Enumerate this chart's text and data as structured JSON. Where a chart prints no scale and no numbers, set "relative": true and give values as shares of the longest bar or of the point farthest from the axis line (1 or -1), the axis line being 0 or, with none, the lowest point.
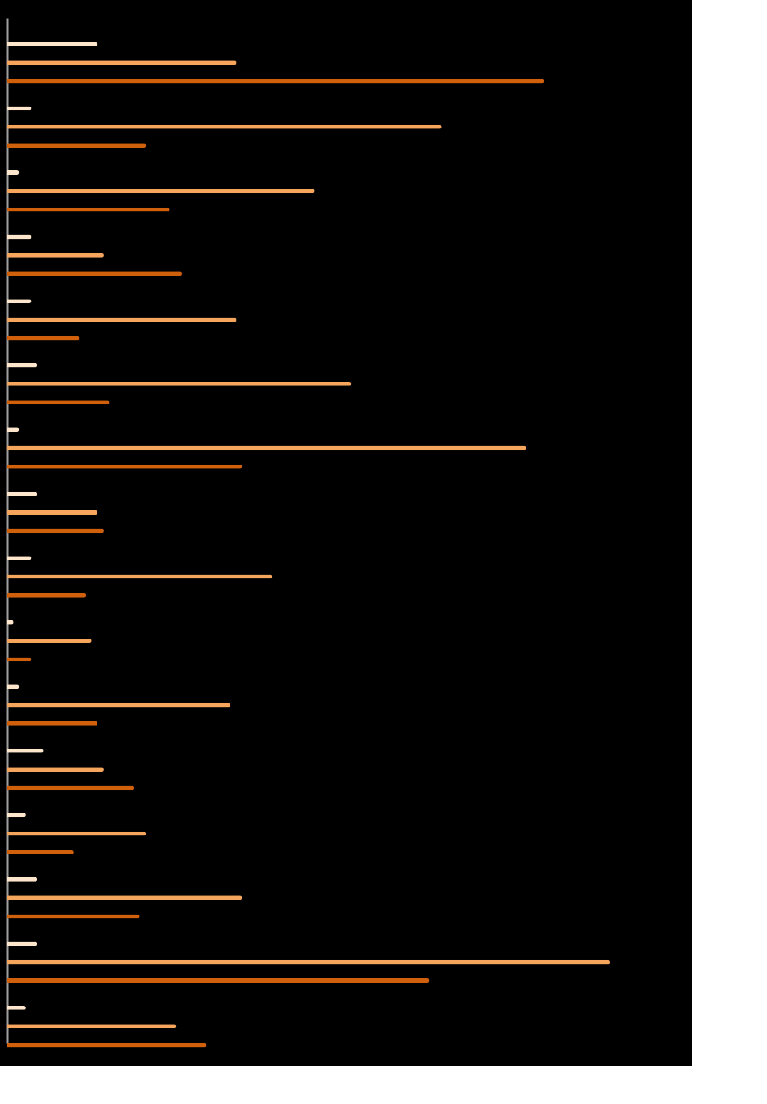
{
  "chart_data": {
    "type": "bar",
    "orientation": "horizontal",
    "relative": true,
    "grid": false,
    "legend": false,
    "categories": [
      null,
      null,
      null,
      null,
      null,
      null,
      null,
      null,
      null,
      null,
      null,
      null,
      null,
      null,
      null,
      null
    ],
    "series": [
      {
        "color": "#fde6cc",
        "values": [
          0.15,
          0.04,
          0.02,
          0.04,
          0.04,
          0.05,
          0.02,
          0.05,
          0.04,
          0.01,
          0.02,
          0.06,
          0.03,
          0.05,
          0.05,
          0.03
        ]
      },
      {
        "color": "#f6a55c",
        "values": [
          0.38,
          0.72,
          0.51,
          0.16,
          0.38,
          0.57,
          0.86,
          0.15,
          0.44,
          0.14,
          0.37,
          0.16,
          0.23,
          0.39,
          1.0,
          0.28
        ]
      },
      {
        "color": "#d0600c",
        "values": [
          0.89,
          0.23,
          0.27,
          0.29,
          0.12,
          0.17,
          0.39,
          0.16,
          0.13,
          0.04,
          0.15,
          0.21,
          0.11,
          0.22,
          0.7,
          0.33
        ]
      }
    ]
  }
}
